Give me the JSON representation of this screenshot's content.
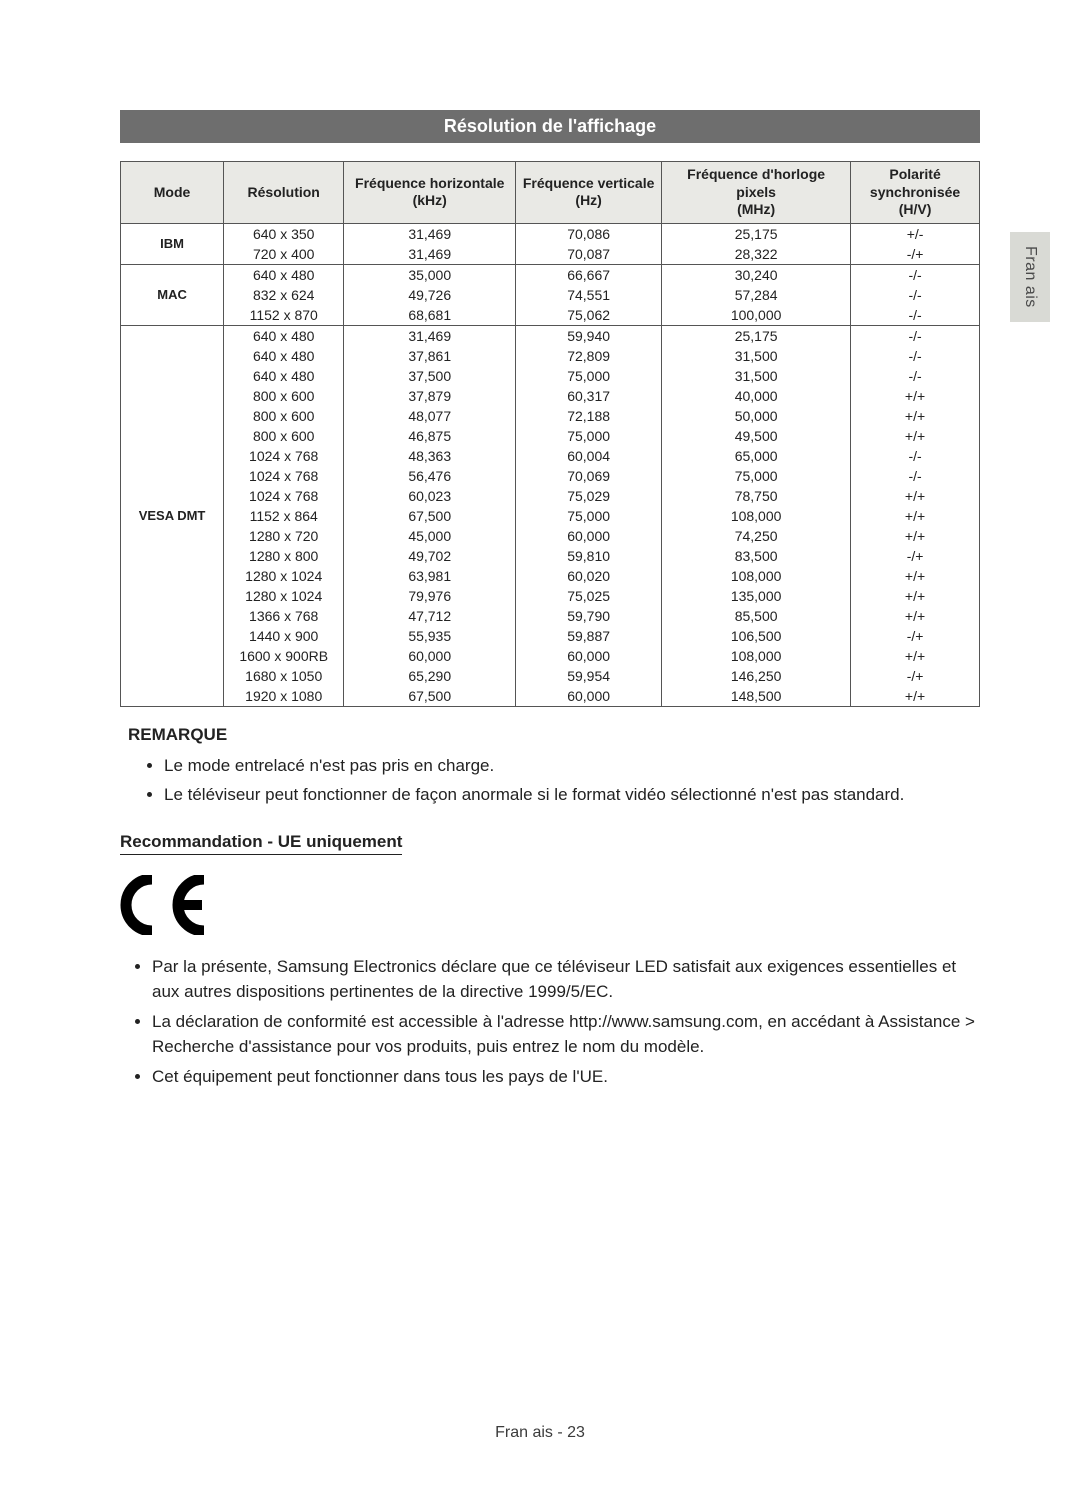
{
  "sidetab": {
    "label": "Fran ais"
  },
  "section_title": "Résolution de l'affichage",
  "table": {
    "columns": [
      {
        "l1": "Mode",
        "l2": ""
      },
      {
        "l1": "Résolution",
        "l2": ""
      },
      {
        "l1": "Fréquence horizontale",
        "l2": "(kHz)"
      },
      {
        "l1": "Fréquence verticale",
        "l2": "(Hz)"
      },
      {
        "l1": "Fréquence d'horloge pixels",
        "l2": "(MHz)"
      },
      {
        "l1": "Polarité",
        "l2": "synchronisée (H/V)"
      }
    ],
    "col_widths": [
      "12%",
      "14%",
      "20%",
      "17%",
      "22%",
      "15%"
    ],
    "groups": [
      {
        "mode": "IBM",
        "rows": [
          {
            "res": "640 x 350",
            "fh": "31,469",
            "fv": "70,086",
            "clk": "25,175",
            "pol": "+/-"
          },
          {
            "res": "720 x 400",
            "fh": "31,469",
            "fv": "70,087",
            "clk": "28,322",
            "pol": "-/+"
          }
        ]
      },
      {
        "mode": "MAC",
        "rows": [
          {
            "res": "640 x 480",
            "fh": "35,000",
            "fv": "66,667",
            "clk": "30,240",
            "pol": "-/-"
          },
          {
            "res": "832 x 624",
            "fh": "49,726",
            "fv": "74,551",
            "clk": "57,284",
            "pol": "-/-"
          },
          {
            "res": "1152 x 870",
            "fh": "68,681",
            "fv": "75,062",
            "clk": "100,000",
            "pol": "-/-"
          }
        ]
      },
      {
        "mode": "VESA DMT",
        "rows": [
          {
            "res": "640 x 480",
            "fh": "31,469",
            "fv": "59,940",
            "clk": "25,175",
            "pol": "-/-"
          },
          {
            "res": "640 x 480",
            "fh": "37,861",
            "fv": "72,809",
            "clk": "31,500",
            "pol": "-/-"
          },
          {
            "res": "640 x 480",
            "fh": "37,500",
            "fv": "75,000",
            "clk": "31,500",
            "pol": "-/-"
          },
          {
            "res": "800 x 600",
            "fh": "37,879",
            "fv": "60,317",
            "clk": "40,000",
            "pol": "+/+"
          },
          {
            "res": "800 x 600",
            "fh": "48,077",
            "fv": "72,188",
            "clk": "50,000",
            "pol": "+/+"
          },
          {
            "res": "800 x 600",
            "fh": "46,875",
            "fv": "75,000",
            "clk": "49,500",
            "pol": "+/+"
          },
          {
            "res": "1024 x 768",
            "fh": "48,363",
            "fv": "60,004",
            "clk": "65,000",
            "pol": "-/-"
          },
          {
            "res": "1024 x 768",
            "fh": "56,476",
            "fv": "70,069",
            "clk": "75,000",
            "pol": "-/-"
          },
          {
            "res": "1024 x 768",
            "fh": "60,023",
            "fv": "75,029",
            "clk": "78,750",
            "pol": "+/+"
          },
          {
            "res": "1152 x 864",
            "fh": "67,500",
            "fv": "75,000",
            "clk": "108,000",
            "pol": "+/+"
          },
          {
            "res": "1280 x 720",
            "fh": "45,000",
            "fv": "60,000",
            "clk": "74,250",
            "pol": "+/+"
          },
          {
            "res": "1280 x 800",
            "fh": "49,702",
            "fv": "59,810",
            "clk": "83,500",
            "pol": "-/+"
          },
          {
            "res": "1280 x 1024",
            "fh": "63,981",
            "fv": "60,020",
            "clk": "108,000",
            "pol": "+/+"
          },
          {
            "res": "1280 x 1024",
            "fh": "79,976",
            "fv": "75,025",
            "clk": "135,000",
            "pol": "+/+"
          },
          {
            "res": "1366 x 768",
            "fh": "47,712",
            "fv": "59,790",
            "clk": "85,500",
            "pol": "+/+"
          },
          {
            "res": "1440 x 900",
            "fh": "55,935",
            "fv": "59,887",
            "clk": "106,500",
            "pol": "-/+"
          },
          {
            "res": "1600 x 900RB",
            "fh": "60,000",
            "fv": "60,000",
            "clk": "108,000",
            "pol": "+/+"
          },
          {
            "res": "1680 x 1050",
            "fh": "65,290",
            "fv": "59,954",
            "clk": "146,250",
            "pol": "-/+"
          },
          {
            "res": "1920 x 1080",
            "fh": "67,500",
            "fv": "60,000",
            "clk": "148,500",
            "pol": "+/+"
          }
        ]
      }
    ]
  },
  "remarque": {
    "title": "REMARQUE",
    "items": [
      "Le mode entrelacé n'est pas pris en charge.",
      "Le téléviseur peut fonctionner de façon anormale si le format vidéo sélectionné n'est pas standard."
    ]
  },
  "reco": {
    "title": "Recommandation - UE uniquement",
    "items": [
      "Par la présente, Samsung Electronics déclare que ce téléviseur LED satisfait aux exigences essentielles et aux autres dispositions pertinentes de la directive 1999/5/EC.",
      "La déclaration de conformité est accessible à l'adresse http://www.samsung.com, en accédant à Assistance > Recherche d'assistance pour vos produits, puis entrez le nom du modèle.",
      "Cet équipement peut fonctionner dans tous les pays de l'UE."
    ]
  },
  "footer": {
    "label": "Fran ais - 23"
  },
  "colors": {
    "section_bar_bg": "#6e6e6e",
    "section_bar_fg": "#ffffff",
    "th_bg": "#e9e9e5",
    "border": "#555555",
    "sidetab_bg": "#d9dad5",
    "text": "#222222"
  }
}
